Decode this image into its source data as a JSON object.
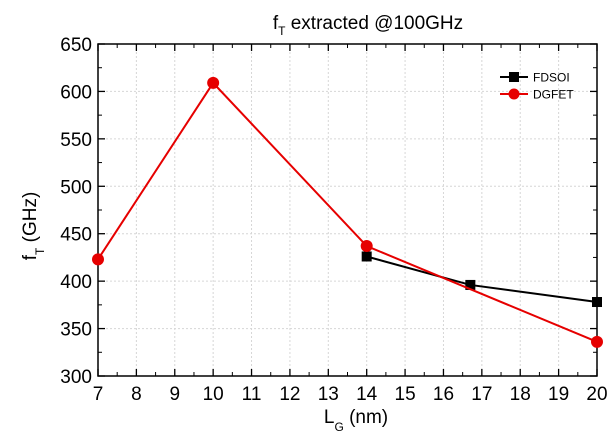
{
  "chart_data": {
    "type": "line",
    "title": {
      "main": "f",
      "sub": "T",
      "rest": " extracted @100GHz"
    },
    "xlabel": {
      "main": "L",
      "sub": "G",
      "rest": " (nm)"
    },
    "ylabel": {
      "main": "f",
      "sub": "T",
      "rest": " (GHz)"
    },
    "xlim": [
      7,
      20
    ],
    "ylim": [
      300,
      650
    ],
    "x_ticks": [
      7,
      8,
      9,
      10,
      11,
      12,
      13,
      14,
      15,
      16,
      17,
      18,
      19,
      20
    ],
    "y_ticks": [
      300,
      350,
      400,
      450,
      500,
      550,
      600,
      650
    ],
    "grid": true,
    "legend_position": "top-right",
    "series": [
      {
        "name": "FDSOI",
        "color": "#000000",
        "marker": "square",
        "x": [
          14,
          16.7,
          20
        ],
        "y": [
          426,
          396,
          378
        ]
      },
      {
        "name": "DGFET",
        "color": "#e60000",
        "marker": "circle",
        "x": [
          7,
          10,
          14,
          20
        ],
        "y": [
          423,
          609,
          437,
          336
        ]
      }
    ]
  }
}
